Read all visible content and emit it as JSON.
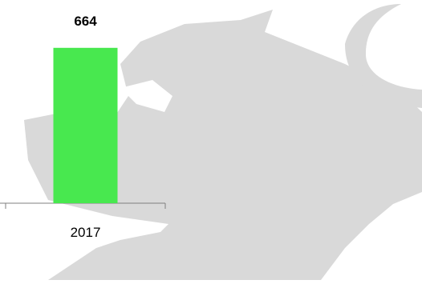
{
  "colors": {
    "bar": "#48e84f",
    "watermark": "#d9d9d9",
    "axis": "#7f7f7f"
  },
  "watermark": {
    "icon": "lion-watermark"
  },
  "chart_data": {
    "type": "bar",
    "categories": [
      "2017"
    ],
    "values": [
      664
    ],
    "data_labels": [
      "664"
    ],
    "title": "",
    "xlabel": "",
    "ylabel": "",
    "ylim": [
      0,
      800
    ],
    "grid": false,
    "legend": "none"
  }
}
